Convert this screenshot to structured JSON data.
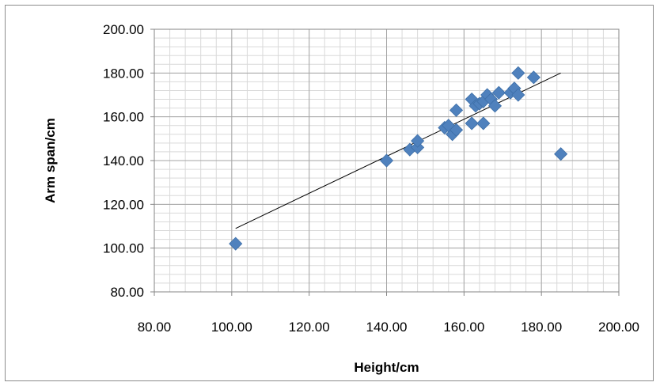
{
  "chart_data": {
    "type": "scatter",
    "title": "",
    "xlabel": "Height/cm",
    "ylabel": "Arm span/cm",
    "xlim": [
      80,
      200
    ],
    "ylim": [
      80,
      200
    ],
    "x_ticks": [
      "80.00",
      "100.00",
      "120.00",
      "140.00",
      "160.00",
      "180.00",
      "200.00"
    ],
    "y_ticks": [
      "80.00",
      "100.00",
      "120.00",
      "140.00",
      "160.00",
      "180.00",
      "200.00"
    ],
    "grid": "major and minor gridlines on both axes",
    "legend": "none",
    "marker": "diamond",
    "marker_color": "#4f81bd",
    "trendline": {
      "type": "linear",
      "color": "#000000",
      "points": [
        [
          101,
          109
        ],
        [
          185,
          180
        ]
      ]
    },
    "points": [
      [
        101,
        102
      ],
      [
        140,
        140
      ],
      [
        146,
        145
      ],
      [
        148,
        146
      ],
      [
        148,
        149
      ],
      [
        155,
        155
      ],
      [
        156,
        156
      ],
      [
        157,
        152
      ],
      [
        158,
        154
      ],
      [
        158,
        163
      ],
      [
        162,
        157
      ],
      [
        162,
        168
      ],
      [
        163,
        165
      ],
      [
        164,
        166
      ],
      [
        165,
        157
      ],
      [
        165,
        167
      ],
      [
        166,
        170
      ],
      [
        167,
        168
      ],
      [
        168,
        165
      ],
      [
        169,
        171
      ],
      [
        172,
        171
      ],
      [
        173,
        173
      ],
      [
        174,
        170
      ],
      [
        174,
        180
      ],
      [
        178,
        178
      ],
      [
        185,
        143
      ]
    ]
  }
}
